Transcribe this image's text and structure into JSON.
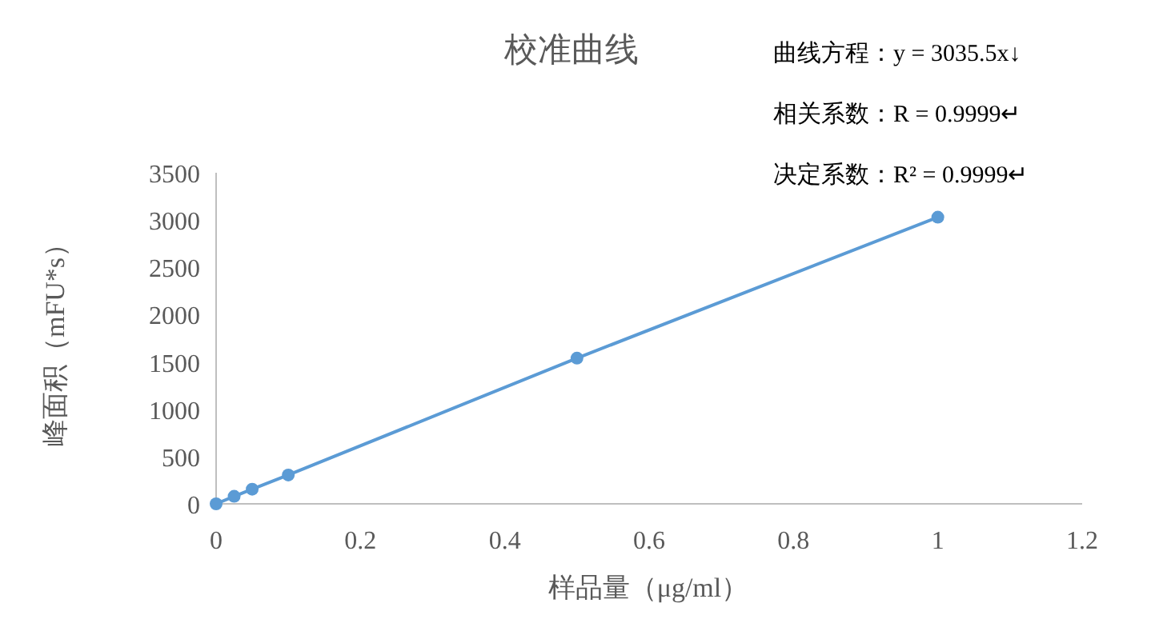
{
  "chart_data": {
    "type": "line",
    "title": "校准曲线",
    "xlabel": "样品量（μg/ml）",
    "ylabel": "峰面积（mFU*s）",
    "annotations": [
      "曲线方程：y = 3035.5x↓",
      "相关系数：R = 0.9999↵",
      "决定系数：R² = 0.9999↵"
    ],
    "x": [
      0,
      0.025,
      0.05,
      0.1,
      0.5,
      1
    ],
    "series": [
      {
        "color": "#5b9bd5",
        "values": [
          0,
          80,
          155,
          305,
          1540,
          3030
        ]
      }
    ],
    "marker": "circle",
    "line_style": "solid",
    "xlim": [
      0,
      1.2
    ],
    "xticks": [
      0,
      0.2,
      0.4,
      0.6,
      0.8,
      1,
      1.2
    ],
    "ylim": [
      0,
      3500
    ],
    "yticks": [
      0,
      500,
      1000,
      1500,
      2000,
      2500,
      3000,
      3500
    ]
  }
}
